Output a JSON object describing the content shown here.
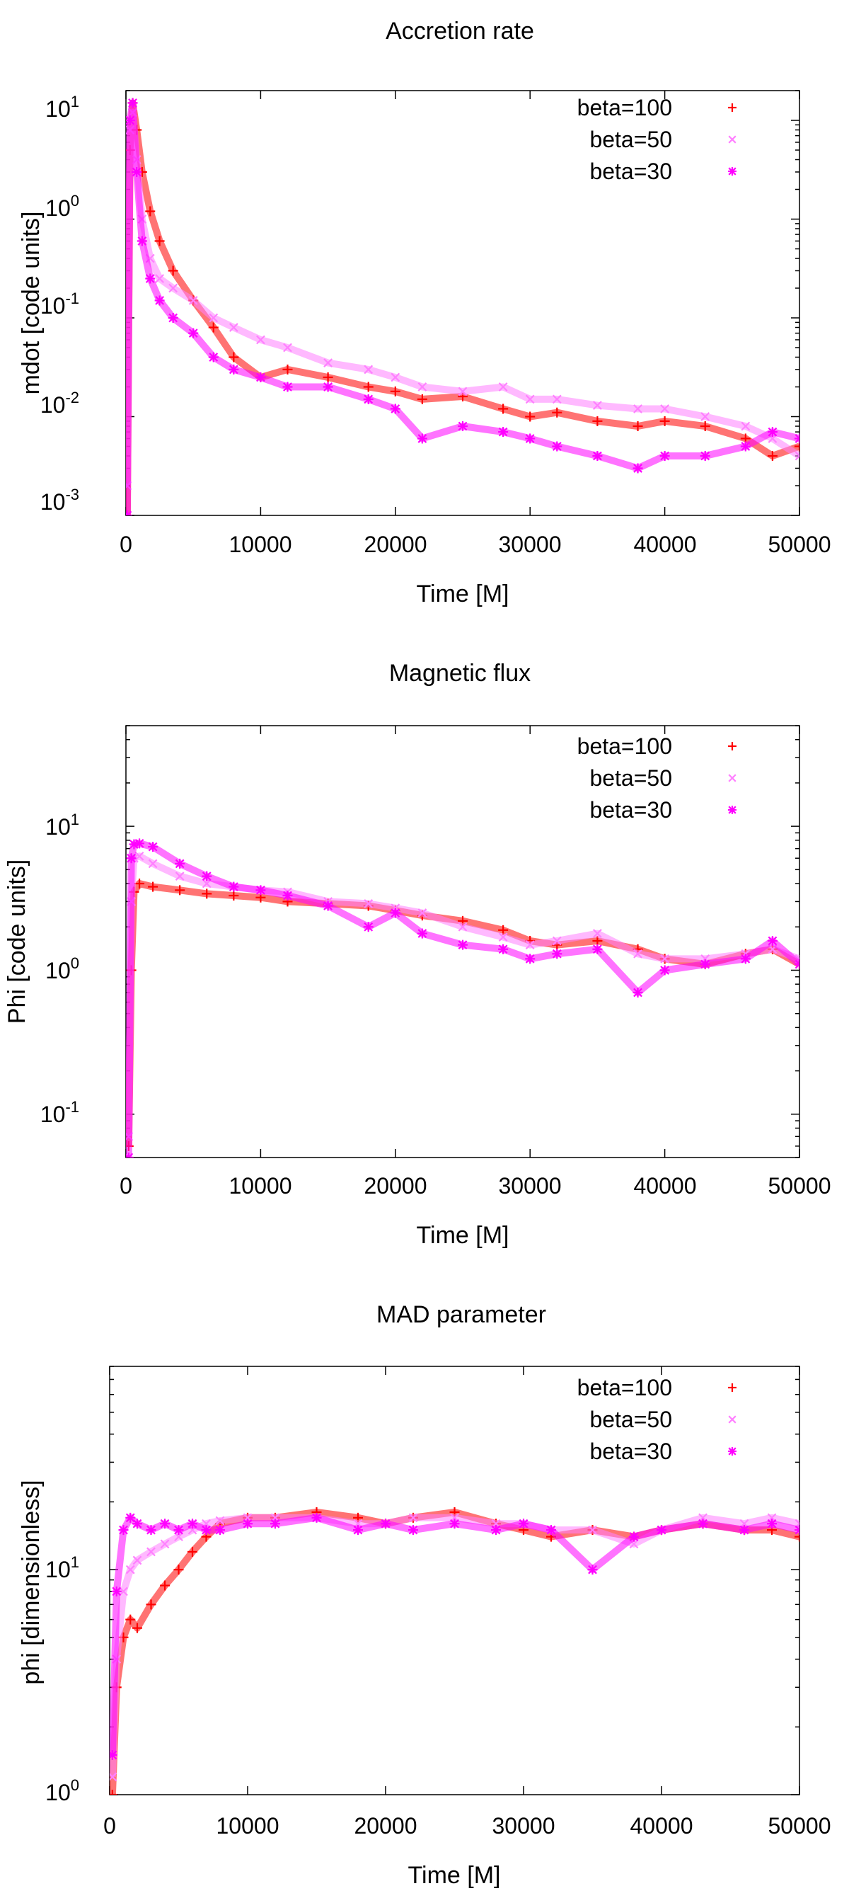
{
  "chart_data": [
    {
      "type": "scatter",
      "title": "Accretion rate",
      "xlabel": "Time [M]",
      "ylabel": "mdot [code units]",
      "xlim": [
        0,
        50000
      ],
      "ylim": [
        0.001,
        20
      ],
      "yscale": "log",
      "xticks": [
        0,
        10000,
        20000,
        30000,
        40000,
        50000
      ],
      "yticks": [
        0.001,
        0.01,
        0.1,
        1,
        10
      ],
      "yticklabels": [
        [
          "10",
          "-3"
        ],
        [
          "10",
          "-2"
        ],
        [
          "10",
          "-1"
        ],
        [
          "10",
          "0"
        ],
        [
          "10",
          "1"
        ]
      ],
      "legend_position": "top-right",
      "grid": false,
      "series": [
        {
          "name": "beta=100",
          "marker": "+",
          "color": "#ff0000",
          "x": [
            100,
            300,
            500,
            800,
            1200,
            1800,
            2500,
            3500,
            5000,
            6500,
            8000,
            10000,
            12000,
            15000,
            18000,
            20000,
            22000,
            25000,
            28000,
            30000,
            32000,
            35000,
            38000,
            40000,
            43000,
            46000,
            48000,
            50000
          ],
          "y": [
            0.001,
            5,
            15,
            8,
            3,
            1.2,
            0.6,
            0.3,
            0.15,
            0.08,
            0.04,
            0.025,
            0.03,
            0.025,
            0.02,
            0.018,
            0.015,
            0.016,
            0.012,
            0.01,
            0.011,
            0.009,
            0.008,
            0.009,
            0.008,
            0.006,
            0.004,
            0.005
          ]
        },
        {
          "name": "beta=50",
          "marker": "x",
          "color": "#ff80ff",
          "x": [
            100,
            300,
            500,
            800,
            1200,
            1800,
            2500,
            3500,
            5000,
            6500,
            8000,
            10000,
            12000,
            15000,
            18000,
            20000,
            22000,
            25000,
            28000,
            30000,
            32000,
            35000,
            38000,
            40000,
            43000,
            46000,
            48000,
            50000
          ],
          "y": [
            0.002,
            8,
            12,
            4,
            1,
            0.4,
            0.25,
            0.2,
            0.15,
            0.1,
            0.08,
            0.06,
            0.05,
            0.035,
            0.03,
            0.025,
            0.02,
            0.018,
            0.02,
            0.015,
            0.015,
            0.013,
            0.012,
            0.012,
            0.01,
            0.008,
            0.006,
            0.004
          ]
        },
        {
          "name": "beta=30",
          "marker": "*",
          "color": "#ff00ff",
          "x": [
            100,
            300,
            500,
            800,
            1200,
            1800,
            2500,
            3500,
            5000,
            6500,
            8000,
            10000,
            12000,
            15000,
            18000,
            20000,
            22000,
            25000,
            28000,
            30000,
            32000,
            35000,
            38000,
            40000,
            43000,
            46000,
            48000,
            50000
          ],
          "y": [
            0.001,
            10,
            15,
            3,
            0.6,
            0.25,
            0.15,
            0.1,
            0.07,
            0.04,
            0.03,
            0.025,
            0.02,
            0.02,
            0.015,
            0.012,
            0.006,
            0.008,
            0.007,
            0.006,
            0.005,
            0.004,
            0.003,
            0.004,
            0.004,
            0.005,
            0.007,
            0.006
          ]
        }
      ]
    },
    {
      "type": "scatter",
      "title": "Magnetic flux",
      "xlabel": "Time [M]",
      "ylabel": "Phi [code units]",
      "xlim": [
        0,
        50000
      ],
      "ylim": [
        0.05,
        50
      ],
      "yscale": "log",
      "xticks": [
        0,
        10000,
        20000,
        30000,
        40000,
        50000
      ],
      "yticks": [
        0.1,
        1,
        10
      ],
      "yticklabels": [
        [
          "10",
          "-1"
        ],
        [
          "10",
          "0"
        ],
        [
          "10",
          "1"
        ]
      ],
      "legend_position": "top-right",
      "grid": false,
      "series": [
        {
          "name": "beta=100",
          "marker": "+",
          "color": "#ff0000",
          "x": [
            200,
            400,
            600,
            1000,
            2000,
            4000,
            6000,
            8000,
            10000,
            12000,
            15000,
            18000,
            20000,
            22000,
            25000,
            28000,
            30000,
            32000,
            35000,
            38000,
            40000,
            43000,
            46000,
            48000,
            50000
          ],
          "y": [
            0.06,
            1,
            3.5,
            4,
            3.8,
            3.6,
            3.4,
            3.3,
            3.2,
            3,
            2.9,
            2.8,
            2.6,
            2.4,
            2.2,
            1.9,
            1.6,
            1.5,
            1.6,
            1.4,
            1.2,
            1.1,
            1.3,
            1.4,
            1.1
          ]
        },
        {
          "name": "beta=50",
          "marker": "x",
          "color": "#ff80ff",
          "x": [
            200,
            400,
            600,
            1000,
            2000,
            4000,
            6000,
            8000,
            10000,
            12000,
            15000,
            18000,
            20000,
            22000,
            25000,
            28000,
            30000,
            32000,
            35000,
            38000,
            40000,
            43000,
            46000,
            48000,
            50000
          ],
          "y": [
            0.07,
            3,
            6,
            6.2,
            5.5,
            4.5,
            4,
            3.8,
            3.6,
            3.5,
            3,
            2.9,
            2.7,
            2.5,
            2,
            1.7,
            1.5,
            1.6,
            1.8,
            1.3,
            1.2,
            1.2,
            1.3,
            1.4,
            1.2
          ]
        },
        {
          "name": "beta=30",
          "marker": "*",
          "color": "#ff00ff",
          "x": [
            200,
            400,
            600,
            1000,
            2000,
            4000,
            6000,
            8000,
            10000,
            12000,
            15000,
            18000,
            20000,
            22000,
            25000,
            28000,
            30000,
            32000,
            35000,
            38000,
            40000,
            43000,
            46000,
            48000,
            50000
          ],
          "y": [
            0.05,
            6,
            7.5,
            7.6,
            7.2,
            5.5,
            4.5,
            3.8,
            3.6,
            3.3,
            2.8,
            2,
            2.5,
            1.8,
            1.5,
            1.4,
            1.2,
            1.3,
            1.4,
            0.7,
            1,
            1.1,
            1.2,
            1.6,
            1.1
          ]
        }
      ]
    },
    {
      "type": "scatter",
      "title": "MAD parameter",
      "xlabel": "Time [M]",
      "ylabel": "phi [dimensionless]",
      "xlim": [
        0,
        50000
      ],
      "ylim": [
        1,
        80
      ],
      "yscale": "log",
      "xticks": [
        0,
        10000,
        20000,
        30000,
        40000,
        50000
      ],
      "yticks": [
        1,
        10
      ],
      "yticklabels": [
        [
          "10",
          "0"
        ],
        [
          "10",
          "1"
        ]
      ],
      "legend_position": "top-right",
      "grid": false,
      "series": [
        {
          "name": "beta=100",
          "marker": "+",
          "color": "#ff0000",
          "x": [
            200,
            500,
            1000,
            1500,
            2000,
            3000,
            4000,
            5000,
            6000,
            7000,
            8000,
            10000,
            12000,
            15000,
            18000,
            20000,
            22000,
            25000,
            28000,
            30000,
            32000,
            35000,
            38000,
            40000,
            43000,
            46000,
            48000,
            50000
          ],
          "y": [
            1,
            3,
            5,
            6,
            5.5,
            7,
            8.5,
            10,
            12,
            14,
            16,
            17,
            17,
            18,
            17,
            16,
            17,
            18,
            16,
            15,
            14,
            15,
            14,
            15,
            16,
            15,
            15,
            14
          ]
        },
        {
          "name": "beta=50",
          "marker": "x",
          "color": "#ff80ff",
          "x": [
            200,
            500,
            1000,
            1500,
            2000,
            3000,
            4000,
            5000,
            6000,
            7000,
            8000,
            10000,
            12000,
            15000,
            18000,
            20000,
            22000,
            25000,
            28000,
            30000,
            32000,
            35000,
            38000,
            40000,
            43000,
            46000,
            48000,
            50000
          ],
          "y": [
            1.2,
            4,
            8,
            10,
            11,
            12,
            13,
            14,
            15,
            16,
            16.5,
            17,
            17,
            17,
            16,
            16,
            17,
            17,
            16,
            16,
            15,
            15,
            13,
            15,
            17,
            16,
            17,
            16
          ]
        },
        {
          "name": "beta=30",
          "marker": "*",
          "color": "#ff00ff",
          "x": [
            200,
            500,
            1000,
            1500,
            2000,
            3000,
            4000,
            5000,
            6000,
            7000,
            8000,
            10000,
            12000,
            15000,
            18000,
            20000,
            22000,
            25000,
            28000,
            30000,
            32000,
            35000,
            38000,
            40000,
            43000,
            46000,
            48000,
            50000
          ],
          "y": [
            1.5,
            8,
            15,
            17,
            16,
            15,
            16,
            15,
            16,
            15,
            15,
            16,
            16,
            17,
            15,
            16,
            15,
            16,
            15,
            16,
            15,
            10,
            14,
            15,
            16,
            15,
            16,
            15
          ]
        }
      ]
    }
  ]
}
